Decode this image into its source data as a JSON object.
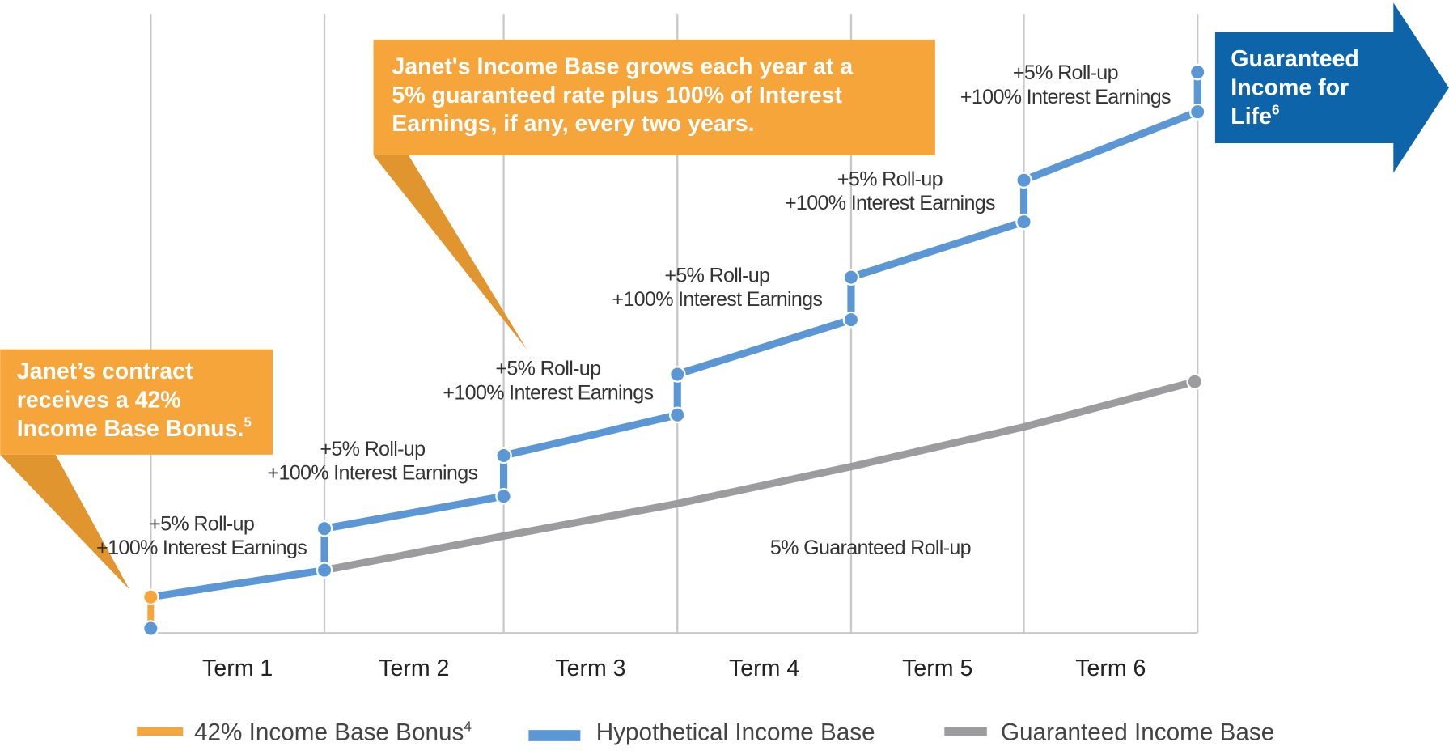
{
  "callouts": [
    {
      "lines": [
        "Janet’s contract",
        "receives a 42%",
        "Income Base Bonus."
      ],
      "sup": "5"
    },
    {
      "lines": [
        "Janet's Income Base grows each year at a",
        "5% guaranteed rate plus 100% of Interest",
        "Earnings, if any, every two years."
      ]
    }
  ],
  "arrow": {
    "lines": [
      "Guaranteed",
      "Income for",
      "Life"
    ],
    "sup": "6"
  },
  "step_labels": [
    {
      "line1": "+5% Roll-up",
      "line2": "+100% Interest Earnings"
    },
    {
      "line1": "+5% Roll-up",
      "line2": "+100% Interest Earnings"
    },
    {
      "line1": "+5% Roll-up",
      "line2": "+100% Interest Earnings"
    },
    {
      "line1": "+5% Roll-up",
      "line2": "+100% Interest Earnings"
    },
    {
      "line1": "+5% Roll-up",
      "line2": "+100% Interest Earnings"
    },
    {
      "line1": "+5% Roll-up",
      "line2": "+100% Interest Earnings"
    }
  ],
  "terms": [
    "Term 1",
    "Term 2",
    "Term 3",
    "Term 4",
    "Term 5",
    "Term 6"
  ],
  "series_label": "5% Guaranteed Roll-up",
  "legend": [
    {
      "label": "42% Income Base Bonus",
      "sup": "4"
    },
    {
      "label": "Hypothetical Income Base"
    },
    {
      "label": "Guaranteed Income Base"
    }
  ]
}
